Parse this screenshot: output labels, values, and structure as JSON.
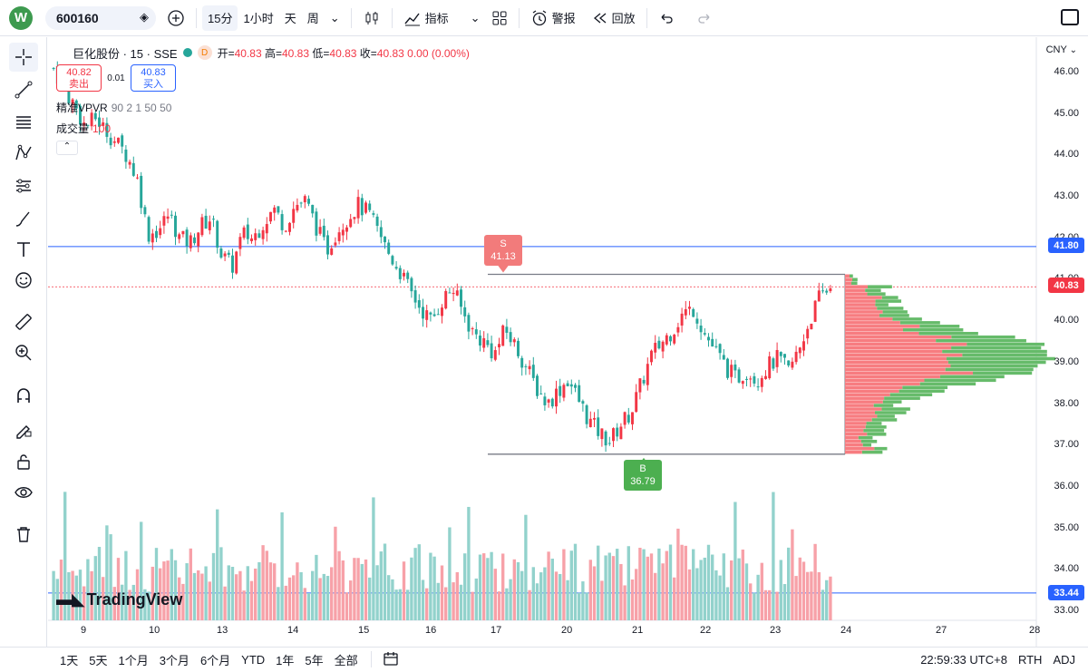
{
  "topbar": {
    "logo": "W",
    "symbol": "600160",
    "interval_15": "15分",
    "interval_1h": "1小时",
    "interval_d": "天",
    "interval_w": "周",
    "indicators": "指标",
    "alert": "警报",
    "replay": "回放"
  },
  "legend": {
    "title": "巨化股份 · 15 · SSE",
    "d_badge": "D",
    "open_label": "开=",
    "open": "40.83",
    "high_label": "高=",
    "high": "40.83",
    "low_label": "低=",
    "low": "40.83",
    "close_label": "收=",
    "close": "40.83",
    "change": "0.00 (0.00%)"
  },
  "trade": {
    "sell_price": "40.82",
    "sell_label": "卖出",
    "spread": "0.01",
    "buy_price": "40.83",
    "buy_label": "买入"
  },
  "indicators": [
    {
      "name": "精准VPVR",
      "params": "90 2 1 50 50",
      "value": ""
    },
    {
      "name": "成交量",
      "params": "",
      "value": "100"
    }
  ],
  "price_axis": {
    "currency": "CNY",
    "labels": [
      "46.00",
      "45.00",
      "44.00",
      "43.00",
      "42.00",
      "41.00",
      "40.00",
      "39.00",
      "38.00",
      "37.00",
      "36.00",
      "35.00",
      "34.00",
      "33.00"
    ],
    "tag_blue_top": "41.80",
    "tag_red": "40.83",
    "tag_blue_bottom": "33.44"
  },
  "signals": {
    "sell_letter": "S",
    "sell_price": "41.13",
    "buy_letter": "B",
    "buy_price": "36.79"
  },
  "watermark": "TradingView",
  "time_axis": [
    "9",
    "10",
    "13",
    "14",
    "15",
    "16",
    "17",
    "20",
    "21",
    "22",
    "23",
    "24",
    "27",
    "28"
  ],
  "bottombar": {
    "ranges": [
      "1天",
      "5天",
      "1个月",
      "3个月",
      "6个月",
      "YTD",
      "1年",
      "5年",
      "全部"
    ],
    "clock": "22:59:33 UTC+8",
    "rth": "RTH",
    "adj": "ADJ"
  },
  "colors": {
    "up": "#f23645",
    "down": "#26a69a",
    "up_vol": "#f7a1a8",
    "down_vol": "#92d2cc",
    "blue_line": "#2962ff"
  },
  "chart_data": {
    "type": "candlestick",
    "x": [
      "9",
      "10",
      "13",
      "14",
      "15",
      "16",
      "17",
      "20",
      "21",
      "22",
      "23",
      "24"
    ],
    "close_trace": [
      46.1,
      45.6,
      45.2,
      44.7,
      44.9,
      44.6,
      44.3,
      44.0,
      43.4,
      42.1,
      42.2,
      42.6,
      42.0,
      41.9,
      42.3,
      42.5,
      41.6,
      41.3,
      42.1,
      42.0,
      42.4,
      42.7,
      42.3,
      42.8,
      42.9,
      42.3,
      41.7,
      42.2,
      42.5,
      42.8,
      42.6,
      42.1,
      41.6,
      41.2,
      40.7,
      40.3,
      40.0,
      40.5,
      40.8,
      40.2,
      39.7,
      39.5,
      39.2,
      39.8,
      39.4,
      38.9,
      38.4,
      38.0,
      38.3,
      38.6,
      38.1,
      37.6,
      37.3,
      37.1,
      37.5,
      37.8,
      38.5,
      39.2,
      39.5,
      39.8,
      40.2,
      40.3,
      39.7,
      39.3,
      38.9,
      38.6,
      38.8,
      38.6,
      38.9,
      39.1,
      38.8,
      39.3,
      40.0,
      40.6,
      40.83
    ],
    "vpvr_profile_range": [
      36.79,
      41.13
    ],
    "horizontal_lines": [
      41.8,
      40.83,
      33.44
    ],
    "ylim": [
      33.0,
      46.3
    ]
  }
}
